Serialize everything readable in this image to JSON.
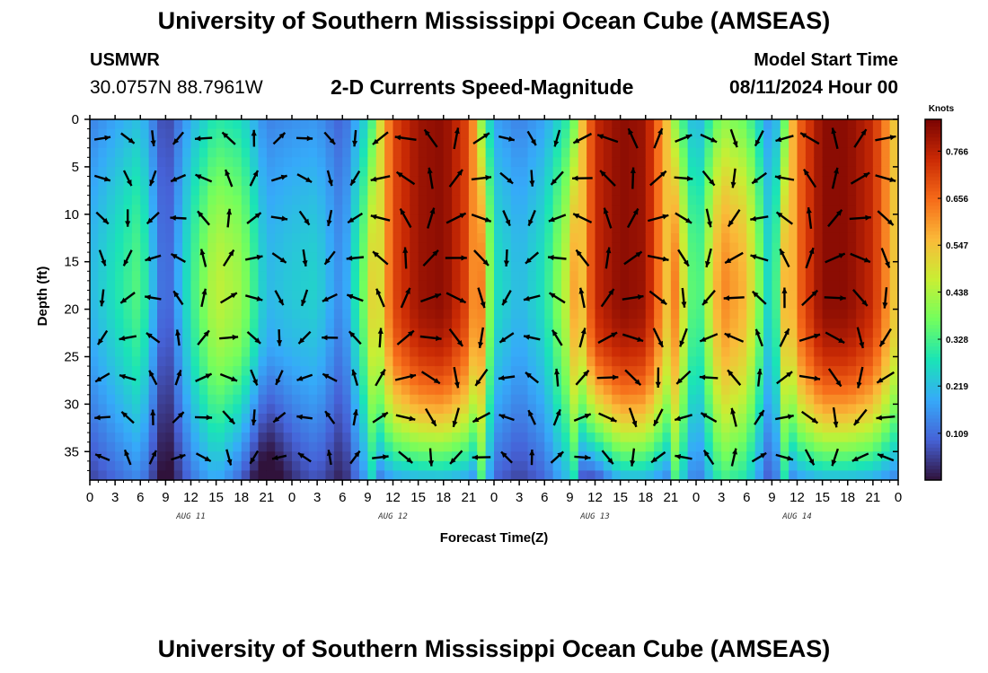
{
  "header": {
    "title": "University of Southern Mississippi Ocean Cube (AMSEAS)",
    "station": "USMWR",
    "coordinates": "30.0757N  88.7961W",
    "subtitle": "2-D Currents Speed-Magnitude",
    "start_label": "Model Start Time",
    "start_value": "08/11/2024 Hour 00"
  },
  "footer": {
    "title": "University of Southern Mississippi Ocean Cube (AMSEAS)"
  },
  "chart_data": {
    "type": "heatmap",
    "title": "2-D Currents Speed-Magnitude",
    "xlabel": "Forecast Time(Z)",
    "ylabel": "Depth (ft)",
    "x_range_hours": [
      0,
      96
    ],
    "y_range_ft": [
      0,
      38
    ],
    "x_tick_labels": [
      "0",
      "3",
      "6",
      "9",
      "12",
      "15",
      "18",
      "21",
      "0",
      "3",
      "6",
      "9",
      "12",
      "15",
      "18",
      "21",
      "0",
      "3",
      "6",
      "9",
      "12",
      "15",
      "18",
      "21",
      "0",
      "3",
      "6",
      "9",
      "12",
      "15",
      "18",
      "21",
      "0"
    ],
    "y_ticks": [
      0,
      5,
      10,
      15,
      20,
      25,
      30,
      35
    ],
    "day_labels": [
      {
        "label": "AUG 11",
        "hour": 12
      },
      {
        "label": "AUG 12",
        "hour": 36
      },
      {
        "label": "AUG 13",
        "hour": 60
      },
      {
        "label": "AUG 14",
        "hour": 84
      }
    ],
    "colorbar": {
      "unit": "Knots",
      "min": 0.0,
      "max": 0.84,
      "ticks": [
        0.766,
        0.656,
        0.547,
        0.438,
        0.328,
        0.219,
        0.109
      ],
      "colors": [
        "#30123b",
        "#4662d7",
        "#36aaf9",
        "#1ae4b6",
        "#72fe5e",
        "#c8ef34",
        "#faba39",
        "#f66b19",
        "#ca2a04",
        "#7a0403"
      ]
    },
    "speed_profile_surface": [
      {
        "hour": 0,
        "knots": 0.15
      },
      {
        "hour": 3,
        "knots": 0.2
      },
      {
        "hour": 6,
        "knots": 0.25
      },
      {
        "hour": 9,
        "knots": 0.05
      },
      {
        "hour": 12,
        "knots": 0.22
      },
      {
        "hour": 15,
        "knots": 0.33
      },
      {
        "hour": 18,
        "knots": 0.3
      },
      {
        "hour": 21,
        "knots": 0.15
      },
      {
        "hour": 24,
        "knots": 0.17
      },
      {
        "hour": 27,
        "knots": 0.18
      },
      {
        "hour": 30,
        "knots": 0.1
      },
      {
        "hour": 33,
        "knots": 0.3
      },
      {
        "hour": 36,
        "knots": 0.7
      },
      {
        "hour": 39,
        "knots": 0.8
      },
      {
        "hour": 42,
        "knots": 0.82
      },
      {
        "hour": 45,
        "knots": 0.7
      },
      {
        "hour": 48,
        "knots": 0.2
      },
      {
        "hour": 51,
        "knots": 0.15
      },
      {
        "hour": 54,
        "knots": 0.2
      },
      {
        "hour": 57,
        "knots": 0.35
      },
      {
        "hour": 60,
        "knots": 0.75
      },
      {
        "hour": 63,
        "knots": 0.82
      },
      {
        "hour": 66,
        "knots": 0.8
      },
      {
        "hour": 69,
        "knots": 0.5
      },
      {
        "hour": 72,
        "knots": 0.2
      },
      {
        "hour": 75,
        "knots": 0.45
      },
      {
        "hour": 78,
        "knots": 0.4
      },
      {
        "hour": 81,
        "knots": 0.15
      },
      {
        "hour": 84,
        "knots": 0.65
      },
      {
        "hour": 87,
        "knots": 0.82
      },
      {
        "hour": 90,
        "knots": 0.82
      },
      {
        "hour": 93,
        "knots": 0.75
      },
      {
        "hour": 96,
        "knots": 0.5
      }
    ],
    "arrows": "current direction vectors on a 3-hourly grid at ~4 ft depth spacing"
  }
}
